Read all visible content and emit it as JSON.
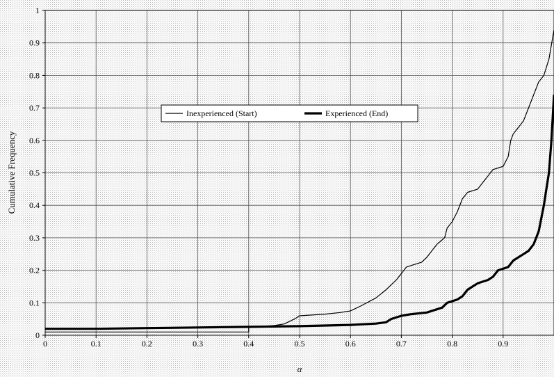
{
  "chart_data": {
    "type": "line",
    "xlabel": "α",
    "ylabel": "Cumulative Frequency",
    "xlim": [
      0,
      1
    ],
    "ylim": [
      0,
      1
    ],
    "grid": true,
    "legend_position": "top-center",
    "x_ticks": [
      "0",
      "0.1",
      "0.2",
      "0.3",
      "0.4",
      "0.5",
      "0.6",
      "0.7",
      "0.8",
      "0.9"
    ],
    "y_ticks": [
      "0",
      "0.1",
      "0.2",
      "0.3",
      "0.4",
      "0.5",
      "0.6",
      "0.7",
      "0.8",
      "0.9",
      "1"
    ],
    "series": [
      {
        "name": "Inexperienced (Start)",
        "style": "thin",
        "x": [
          0,
          0.1,
          0.2,
          0.3,
          0.4,
          0.4,
          0.45,
          0.47,
          0.49,
          0.5,
          0.55,
          0.58,
          0.6,
          0.62,
          0.65,
          0.67,
          0.69,
          0.7,
          0.71,
          0.72,
          0.74,
          0.75,
          0.77,
          0.785,
          0.79,
          0.795,
          0.8,
          0.81,
          0.82,
          0.83,
          0.85,
          0.86,
          0.87,
          0.88,
          0.89,
          0.9,
          0.91,
          0.915,
          0.92,
          0.93,
          0.94,
          0.95,
          0.96,
          0.97,
          0.98,
          0.99,
          1.0
        ],
        "y": [
          0.01,
          0.01,
          0.01,
          0.01,
          0.01,
          0.025,
          0.03,
          0.035,
          0.05,
          0.06,
          0.065,
          0.07,
          0.075,
          0.09,
          0.115,
          0.14,
          0.17,
          0.19,
          0.21,
          0.215,
          0.225,
          0.24,
          0.28,
          0.3,
          0.33,
          0.34,
          0.35,
          0.38,
          0.42,
          0.44,
          0.45,
          0.47,
          0.49,
          0.51,
          0.515,
          0.52,
          0.55,
          0.6,
          0.62,
          0.64,
          0.66,
          0.7,
          0.74,
          0.78,
          0.8,
          0.85,
          0.94
        ]
      },
      {
        "name": "Experienced (End)",
        "style": "thick",
        "x": [
          0,
          0.1,
          0.2,
          0.3,
          0.4,
          0.45,
          0.5,
          0.55,
          0.6,
          0.65,
          0.67,
          0.68,
          0.7,
          0.72,
          0.75,
          0.78,
          0.79,
          0.8,
          0.81,
          0.82,
          0.83,
          0.84,
          0.85,
          0.86,
          0.87,
          0.88,
          0.89,
          0.9,
          0.91,
          0.92,
          0.93,
          0.94,
          0.95,
          0.96,
          0.965,
          0.97,
          0.975,
          0.98,
          0.985,
          0.99,
          0.995,
          1.0
        ],
        "y": [
          0.02,
          0.02,
          0.022,
          0.024,
          0.026,
          0.027,
          0.028,
          0.03,
          0.032,
          0.036,
          0.04,
          0.05,
          0.06,
          0.065,
          0.07,
          0.085,
          0.1,
          0.105,
          0.11,
          0.12,
          0.14,
          0.15,
          0.16,
          0.165,
          0.17,
          0.18,
          0.2,
          0.205,
          0.21,
          0.23,
          0.24,
          0.25,
          0.26,
          0.28,
          0.3,
          0.32,
          0.36,
          0.4,
          0.45,
          0.5,
          0.6,
          0.74
        ]
      }
    ]
  }
}
